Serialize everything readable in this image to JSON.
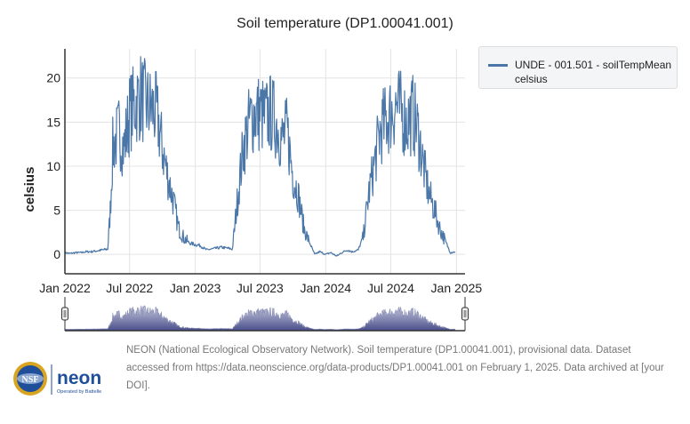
{
  "chart_data": {
    "type": "line",
    "title": "Soil temperature (DP1.00041.001)",
    "ylabel": "celsius",
    "xlabel": "",
    "ylim": [
      -2.2,
      23.3
    ],
    "xlim": [
      "2022-01-01",
      "2025-01-25"
    ],
    "y_ticks": [
      0,
      5,
      10,
      15,
      20
    ],
    "x_ticks": [
      "Jan 2022",
      "Jul 2022",
      "Jan 2023",
      "Jul 2023",
      "Jan 2024",
      "Jul 2024",
      "Jan 2025"
    ],
    "x_tick_dates": [
      "2022-01-01",
      "2022-07-01",
      "2023-01-01",
      "2023-07-01",
      "2024-01-01",
      "2024-07-01",
      "2025-01-01"
    ],
    "grid": true,
    "legend_placement": "right",
    "range_slider": true,
    "series": [
      {
        "name": "UNDE - 001.501 - soilTempMean",
        "unit": "celsius",
        "color": "#4a76a8",
        "x": [
          "2022-01-01",
          "2022-01-15",
          "2022-02-01",
          "2022-02-15",
          "2022-03-01",
          "2022-03-15",
          "2022-04-01",
          "2022-04-15",
          "2022-05-01",
          "2022-05-08",
          "2022-05-15",
          "2022-06-01",
          "2022-06-15",
          "2022-07-01",
          "2022-07-15",
          "2022-08-01",
          "2022-08-15",
          "2022-09-01",
          "2022-09-15",
          "2022-10-01",
          "2022-10-15",
          "2022-11-01",
          "2022-11-15",
          "2022-12-01",
          "2022-12-15",
          "2023-01-01",
          "2023-01-15",
          "2023-02-01",
          "2023-02-15",
          "2023-03-01",
          "2023-03-15",
          "2023-04-01",
          "2023-04-15",
          "2023-05-01",
          "2023-05-15",
          "2023-06-01",
          "2023-06-15",
          "2023-07-01",
          "2023-07-15",
          "2023-08-01",
          "2023-08-15",
          "2023-09-01",
          "2023-09-15",
          "2023-10-01",
          "2023-10-15",
          "2023-11-01",
          "2023-11-15",
          "2023-12-01",
          "2023-12-15",
          "2024-01-01",
          "2024-01-15",
          "2024-02-01",
          "2024-02-15",
          "2024-03-01",
          "2024-03-15",
          "2024-04-01",
          "2024-04-15",
          "2024-05-01",
          "2024-05-15",
          "2024-06-01",
          "2024-06-15",
          "2024-07-01",
          "2024-07-15",
          "2024-08-01",
          "2024-08-15",
          "2024-09-01",
          "2024-09-15",
          "2024-10-01",
          "2024-10-15",
          "2024-11-01",
          "2024-11-15",
          "2024-12-01",
          "2024-12-15",
          "2024-12-28"
        ],
        "y": [
          0.2,
          0.1,
          0.2,
          0.2,
          0.3,
          0.3,
          0.4,
          0.5,
          0.6,
          5,
          12,
          14,
          12,
          16,
          17,
          18,
          17,
          16.5,
          16,
          12,
          9,
          6,
          3,
          1.8,
          1.3,
          1.1,
          1.0,
          0.5,
          0.6,
          0.7,
          0.8,
          0.7,
          0.6,
          7,
          12,
          15,
          16,
          16,
          15.5,
          16,
          15,
          13,
          14,
          9,
          7,
          3,
          1.5,
          0,
          0.3,
          0,
          0.2,
          -0.2,
          0.2,
          0.5,
          0.3,
          0.5,
          2,
          7,
          10,
          14,
          15,
          16,
          17,
          16,
          15,
          16,
          14,
          10,
          7,
          5,
          3,
          1.5,
          0.2,
          0.3
        ]
      }
    ]
  },
  "legend": {
    "label": "UNDE - 001.501 - soilTempMean",
    "unit": "celsius"
  },
  "footer": {
    "citation": "NEON (National Ecological Observatory Network). Soil temperature (DP1.00041.001), provisional data. Dataset accessed from https://data.neonscience.org/data-products/DP1.00041.001 on February 1, 2025. Data archived at [your DOI]."
  },
  "logo": {
    "nsf": "NSF",
    "neon": "neon",
    "tagline": "Operated by Battelle"
  }
}
